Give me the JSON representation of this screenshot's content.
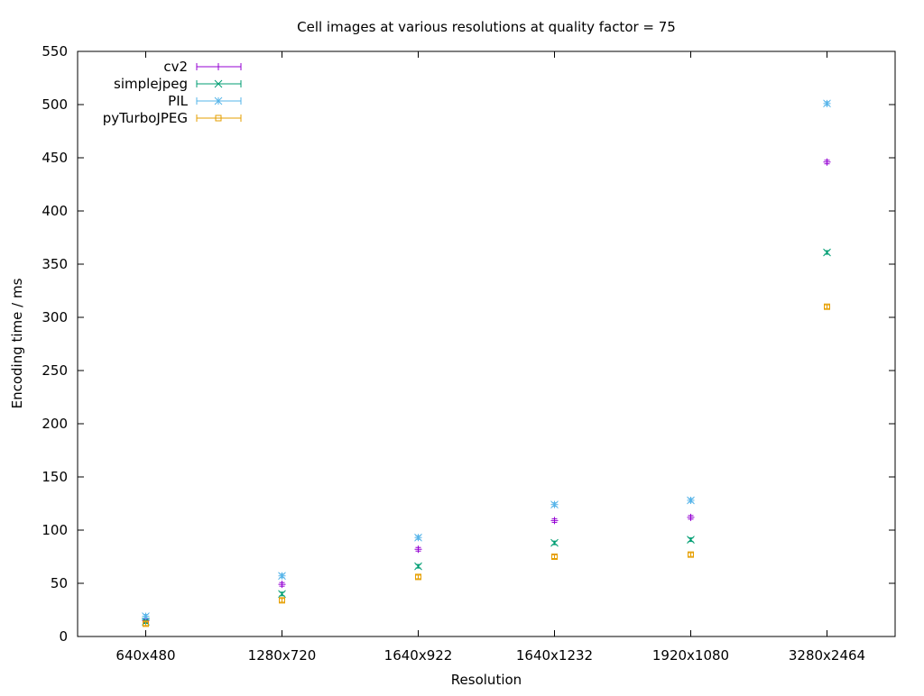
{
  "chart_data": {
    "type": "scatter",
    "title": "Cell images at various resolutions at quality factor = 75",
    "xlabel": "Resolution",
    "ylabel": "Encoding time / ms",
    "categories": [
      "640x480",
      "1280x720",
      "1640x922",
      "1640x1232",
      "1920x1080",
      "3280x2464"
    ],
    "ylim": [
      0,
      550
    ],
    "yticks": [
      0,
      50,
      100,
      150,
      200,
      250,
      300,
      350,
      400,
      450,
      500,
      550
    ],
    "grid": false,
    "legend_position": "top-left",
    "error_bars": true,
    "series": [
      {
        "name": "cv2",
        "color": "#9400d3",
        "marker": "plus",
        "values": [
          15,
          49,
          82,
          109,
          112,
          446
        ]
      },
      {
        "name": "simplejpeg",
        "color": "#009e73",
        "marker": "cross",
        "values": [
          14,
          40,
          66,
          88,
          91,
          361
        ]
      },
      {
        "name": "PIL",
        "color": "#56b4e9",
        "marker": "star",
        "values": [
          19,
          57,
          93,
          124,
          128,
          501
        ]
      },
      {
        "name": "pyTurboJPEG",
        "color": "#e69f00",
        "marker": "square",
        "values": [
          12,
          34,
          56,
          75,
          77,
          310
        ]
      }
    ]
  }
}
